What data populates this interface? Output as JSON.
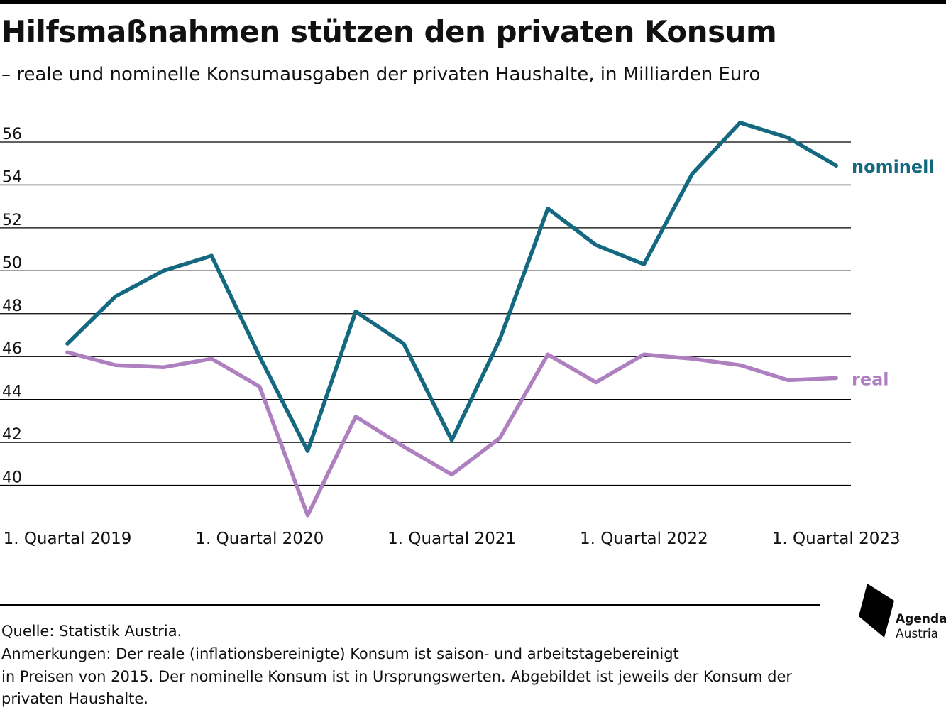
{
  "title": "Hilfsmaßnahmen stützen den privaten Konsum",
  "subtitle": "– reale und nominelle Konsumausgaben der privaten Haushalte, in Milliarden Euro",
  "chart_data": {
    "type": "line",
    "x_tick_labels": [
      "1. Quartal 2019",
      "1. Quartal 2020",
      "1. Quartal 2021",
      "1. Quartal 2022",
      "1. Quartal 2023"
    ],
    "x_tick_index": [
      0,
      4,
      8,
      12,
      16
    ],
    "y_ticks": [
      40,
      42,
      44,
      46,
      48,
      50,
      52,
      54,
      56
    ],
    "ylim": [
      40,
      56
    ],
    "grid": true,
    "series": [
      {
        "name": "nominell",
        "color": "#14687f",
        "values": [
          46.6,
          48.8,
          50.0,
          50.7,
          46.0,
          41.6,
          48.1,
          46.6,
          42.1,
          46.8,
          52.9,
          51.2,
          50.3,
          54.5,
          56.9,
          56.2,
          54.9
        ]
      },
      {
        "name": "real",
        "color": "#ae80c0",
        "values": [
          46.2,
          45.6,
          45.5,
          45.9,
          44.6,
          38.6,
          43.2,
          41.8,
          40.5,
          42.2,
          46.1,
          44.8,
          46.1,
          45.9,
          45.6,
          44.9,
          45.0
        ]
      }
    ]
  },
  "footer": {
    "source": "Quelle: Statistik Austria.",
    "note_line1": "Anmerkungen: Der reale (inflationsbereinigte) Konsum ist saison- und arbeitstagebereinigt",
    "note_line2": "in Preisen von 2015. Der nominelle Konsum ist in Ursprungswerten. Abgebildet ist jeweils der Konsum der",
    "note_line3": "privaten Haushalte."
  },
  "logo": {
    "line1": "Agenda",
    "line2": "Austria"
  }
}
